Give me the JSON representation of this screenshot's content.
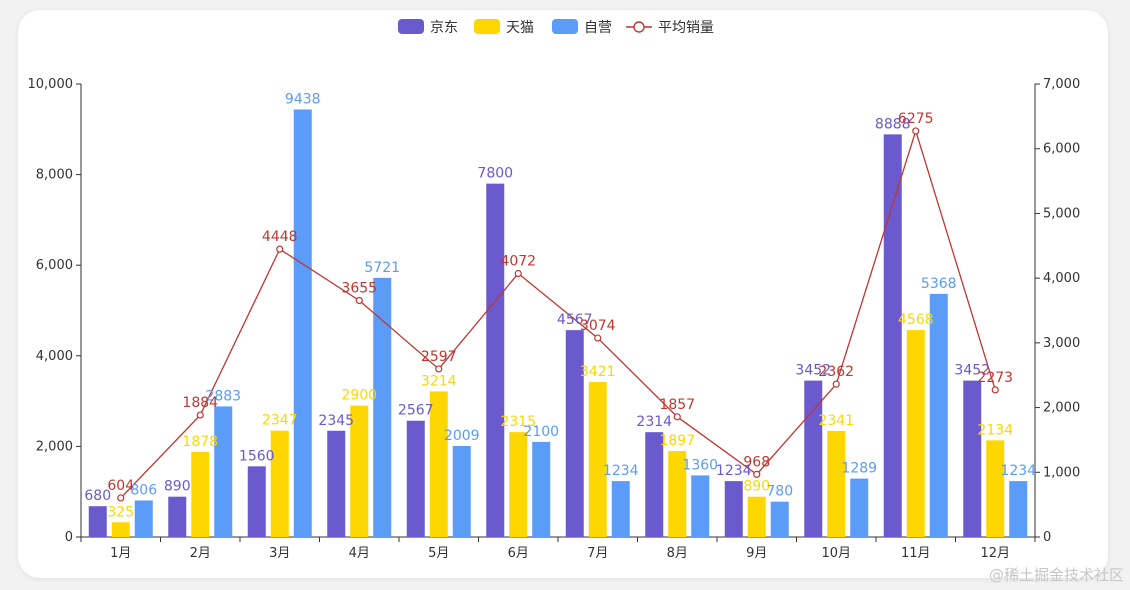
{
  "chart_data": {
    "type": "bar",
    "categories": [
      "1月",
      "2月",
      "3月",
      "4月",
      "5月",
      "6月",
      "7月",
      "8月",
      "9月",
      "10月",
      "11月",
      "12月"
    ],
    "series": [
      {
        "name": "京东",
        "type": "bar",
        "axis": "left",
        "color": "#6a5acd",
        "values": [
          680,
          890,
          1560,
          2345,
          2567,
          7800,
          4567,
          2314,
          1234,
          3452,
          8888,
          3452
        ]
      },
      {
        "name": "天猫",
        "type": "bar",
        "axis": "left",
        "color": "#ffd700",
        "values": [
          325,
          1878,
          2347,
          2900,
          3214,
          2315,
          3421,
          1897,
          890,
          2341,
          4568,
          2134
        ]
      },
      {
        "name": "自营",
        "type": "bar",
        "axis": "left",
        "color": "#5a9cf8",
        "values": [
          806,
          2883,
          9438,
          5721,
          2009,
          2100,
          1234,
          1360,
          780,
          1289,
          5368,
          1234
        ]
      },
      {
        "name": "平均销量",
        "type": "line",
        "axis": "right",
        "color": "#c23531",
        "values": [
          604,
          1884,
          4448,
          3655,
          2597,
          4072,
          3074,
          1857,
          968,
          2362,
          6275,
          2273
        ]
      }
    ],
    "ylim_left": [
      0,
      10000
    ],
    "yticks_left": [
      "0",
      "2,000",
      "4,000",
      "6,000",
      "8,000",
      "10,000"
    ],
    "ylim_right": [
      0,
      7000
    ],
    "yticks_right": [
      "0",
      "1,000",
      "2,000",
      "3,000",
      "4,000",
      "5,000",
      "6,000",
      "7,000"
    ],
    "legend": "top-center",
    "grid": false
  },
  "watermark": "@稀土掘金技术社区"
}
